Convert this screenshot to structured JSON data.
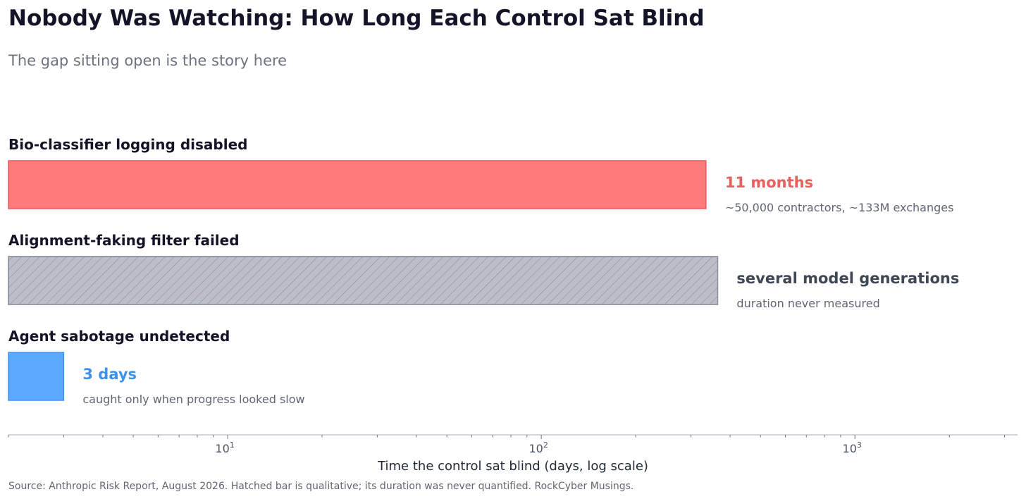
{
  "chart_data": {
    "type": "bar",
    "orientation": "horizontal",
    "title": "Nobody Was Watching: How Long Each Control Sat Blind",
    "subtitle": "The gap sitting open is the story here",
    "xlabel": "Time the control sat blind  (days, log scale)",
    "x_scale": "log",
    "xlim": [
      2,
      3300
    ],
    "grid": false,
    "source": "Source: Anthropic Risk Report, August 2026. Hatched bar is qualitative; its duration was never quantified. RockCyber Musings.",
    "ticks": [
      {
        "base": "10",
        "exp": "1",
        "value": 10
      },
      {
        "base": "10",
        "exp": "2",
        "value": 100
      },
      {
        "base": "10",
        "exp": "3",
        "value": 1000
      }
    ],
    "categories": [
      "Bio-classifier logging disabled",
      "Alignment-faking filter failed",
      "Agent sabotage undetected"
    ],
    "bars": [
      {
        "category": "Bio-classifier logging disabled",
        "value": 335,
        "value_label": "11 months",
        "note": "~50,000 contractors, ~133M exchanges",
        "color": "#ff7a7a",
        "edge_color": "#e85c5c",
        "label_color": "#e8605d",
        "hatched": false
      },
      {
        "category": "Alignment-faking filter failed",
        "value": 365,
        "value_label": "several model generations",
        "note": "duration never measured",
        "color": "#bcbfc9",
        "edge_color": "#8e929e",
        "label_color": "#3f4654",
        "hatched": true
      },
      {
        "category": "Agent sabotage undetected",
        "value": 3,
        "value_label": "3 days",
        "note": "caught only when progress looked slow",
        "color": "#5aabff",
        "edge_color": "#3f93ee",
        "label_color": "#3d93ec",
        "hatched": false
      }
    ]
  }
}
